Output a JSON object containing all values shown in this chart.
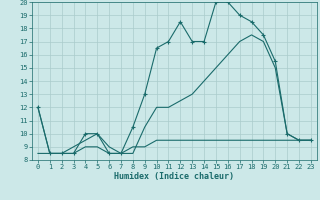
{
  "title": "",
  "xlabel": "Humidex (Indice chaleur)",
  "bg_color": "#cce8e8",
  "line_color": "#1a6b6b",
  "grid_color": "#aacccc",
  "font_color": "#1a6b6b",
  "xlim": [
    -0.5,
    23.5
  ],
  "ylim": [
    8,
    20
  ],
  "xticks": [
    0,
    1,
    2,
    3,
    4,
    5,
    6,
    7,
    8,
    9,
    10,
    11,
    12,
    13,
    14,
    15,
    16,
    17,
    18,
    19,
    20,
    21,
    22,
    23
  ],
  "yticks": [
    8,
    9,
    10,
    11,
    12,
    13,
    14,
    15,
    16,
    17,
    18,
    19,
    20
  ],
  "series1_x": [
    0,
    1,
    2,
    3,
    4,
    5,
    6,
    7,
    8,
    9,
    10,
    11,
    12,
    13,
    14,
    15,
    16,
    17,
    18,
    19,
    20,
    21,
    22,
    23
  ],
  "series1_y": [
    8.5,
    8.5,
    8.5,
    8.5,
    9.0,
    9.0,
    8.5,
    8.5,
    9.0,
    9.0,
    9.5,
    9.5,
    9.5,
    9.5,
    9.5,
    9.5,
    9.5,
    9.5,
    9.5,
    9.5,
    9.5,
    9.5,
    9.5,
    9.5
  ],
  "series2_x": [
    0,
    1,
    2,
    3,
    4,
    5,
    6,
    7,
    8,
    9,
    10,
    11,
    12,
    13,
    14,
    15,
    16,
    17,
    18,
    19,
    20,
    21,
    22,
    23
  ],
  "series2_y": [
    12,
    8.5,
    8.5,
    8.5,
    10,
    10,
    8.5,
    8.5,
    10.5,
    13,
    16.5,
    17,
    18.5,
    17,
    17,
    20,
    20,
    19,
    18.5,
    17.5,
    15.5,
    10,
    9.5,
    9.5
  ],
  "series3_x": [
    0,
    1,
    2,
    3,
    4,
    5,
    6,
    7,
    8,
    9,
    10,
    11,
    12,
    13,
    14,
    15,
    16,
    17,
    18,
    19,
    20,
    21,
    22,
    23
  ],
  "series3_y": [
    12,
    8.5,
    8.5,
    9,
    9.5,
    10,
    9,
    8.5,
    8.5,
    10.5,
    12,
    12,
    12.5,
    13,
    14,
    15,
    16,
    17,
    17.5,
    17,
    15,
    10,
    9.5,
    9.5
  ]
}
